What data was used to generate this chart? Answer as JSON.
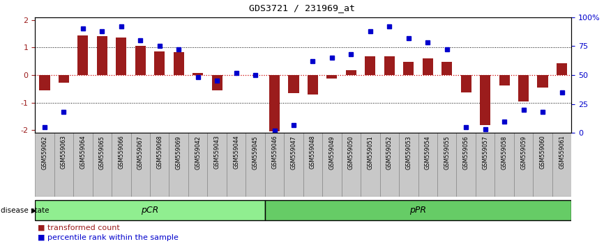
{
  "title": "GDS3721 / 231969_at",
  "samples": [
    "GSM559062",
    "GSM559063",
    "GSM559064",
    "GSM559065",
    "GSM559066",
    "GSM559067",
    "GSM559068",
    "GSM559069",
    "GSM559042",
    "GSM559043",
    "GSM559044",
    "GSM559045",
    "GSM559046",
    "GSM559047",
    "GSM559048",
    "GSM559049",
    "GSM559050",
    "GSM559051",
    "GSM559052",
    "GSM559053",
    "GSM559054",
    "GSM559055",
    "GSM559056",
    "GSM559057",
    "GSM559058",
    "GSM559059",
    "GSM559060",
    "GSM559061"
  ],
  "bar_values": [
    -0.55,
    -0.28,
    1.45,
    1.42,
    1.35,
    1.07,
    0.87,
    0.82,
    0.07,
    -0.55,
    0.0,
    0.0,
    -2.05,
    -0.65,
    -0.72,
    -0.12,
    0.18,
    0.68,
    0.68,
    0.48,
    0.6,
    0.48,
    -0.62,
    -1.82,
    -0.38,
    -0.95,
    -0.45,
    0.42
  ],
  "percentile_values": [
    5,
    18,
    90,
    88,
    92,
    80,
    75,
    72,
    48,
    45,
    52,
    50,
    2,
    7,
    62,
    65,
    68,
    88,
    92,
    82,
    78,
    72,
    5,
    3,
    10,
    20,
    18,
    35
  ],
  "pCR_count": 12,
  "pPR_count": 16,
  "bar_color": "#9B1C1C",
  "percentile_color": "#0000CC",
  "zero_line_color": "#CC0000",
  "ylim": [
    -2.1,
    2.1
  ],
  "y_ticks": [
    -2,
    -1,
    0,
    1,
    2
  ],
  "pct_ticks": [
    0,
    25,
    50,
    75,
    100
  ],
  "pCR_color": "#90EE90",
  "pPR_color": "#66CC66",
  "tick_label_bg": "#C8C8C8",
  "disease_state_label": "disease state",
  "legend_red": "transformed count",
  "legend_blue": "percentile rank within the sample"
}
